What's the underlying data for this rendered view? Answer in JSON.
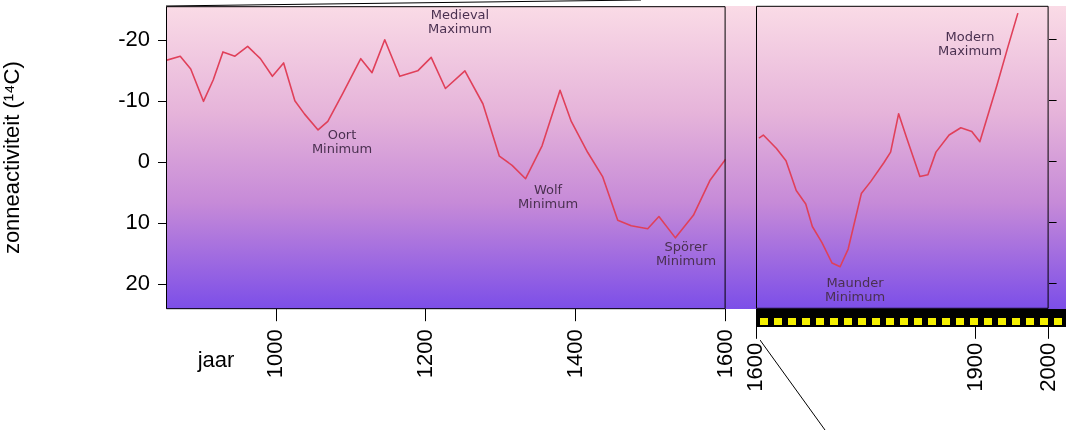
{
  "chart_data": [
    {
      "type": "line",
      "ylabel": "zonneactiviteit (¹⁴C)",
      "xlabel": "jaar",
      "xlim": [
        853,
        1600
      ],
      "xticks": [
        1000,
        1200,
        1400,
        1600
      ],
      "ylim": [
        24.1,
        -25.6
      ],
      "yticks": [
        -20,
        -10,
        0,
        10,
        20
      ],
      "grid": false,
      "legend": false,
      "marker": "none",
      "line_style": "solid",
      "x": [
        853,
        872,
        886,
        903,
        916,
        929,
        945,
        962,
        979,
        995,
        1010,
        1025,
        1038,
        1056,
        1069,
        1089,
        1113,
        1128,
        1145,
        1165,
        1189,
        1207,
        1226,
        1252,
        1276,
        1298,
        1315,
        1333,
        1355,
        1379,
        1394,
        1416,
        1436,
        1456,
        1474,
        1496,
        1511,
        1533,
        1557,
        1579,
        1600
      ],
      "series": [
        {
          "color": "#e0405a",
          "values": [
            -16.7,
            -17.4,
            -15.3,
            -10.0,
            -13.5,
            -18.1,
            -17.4,
            -19.0,
            -17.0,
            -14.1,
            -16.3,
            -10.1,
            -7.9,
            -5.3,
            -6.7,
            -11.3,
            -17.0,
            -14.7,
            -20.1,
            -14.1,
            -15.0,
            -17.2,
            -12.1,
            -15.0,
            -9.6,
            -1.0,
            0.5,
            2.7,
            -2.7,
            -11.8,
            -6.7,
            -1.6,
            2.4,
            9.5,
            10.4,
            10.9,
            8.9,
            12.4,
            8.7,
            3.0,
            -0.5
          ]
        }
      ],
      "annotations": [
        "Oort Minimum",
        "Medieval Maximum",
        "Wolf Minimum",
        "Spörer Minimum"
      ]
    },
    {
      "type": "line",
      "xlim": [
        1600,
        2000
      ],
      "xticks": [
        1600,
        1900,
        2000
      ],
      "ylim": [
        24.1,
        -25.6
      ],
      "yticks": [
        -20,
        -10,
        0,
        10,
        20
      ],
      "tick_labels": "x",
      "grid": false,
      "legend": false,
      "marker": "none",
      "line_style": "solid",
      "x": [
        1604,
        1610,
        1628,
        1641,
        1655,
        1668,
        1677,
        1690,
        1704,
        1715,
        1726,
        1744,
        1757,
        1775,
        1784,
        1795,
        1806,
        1824,
        1835,
        1846,
        1864,
        1880,
        1895,
        1906,
        1929,
        1944,
        1958
      ],
      "series": [
        {
          "color": "#e0405a",
          "values": [
            -3.9,
            -4.4,
            -2.2,
            -0.2,
            4.7,
            6.9,
            10.6,
            13.2,
            16.6,
            17.2,
            14.3,
            5.2,
            3.2,
            0.1,
            -1.6,
            -7.9,
            -3.9,
            2.4,
            2.1,
            -1.6,
            -4.4,
            -5.6,
            -5.0,
            -3.3,
            -12.4,
            -18.7,
            -24.4
          ]
        }
      ],
      "annotations": [
        "Maunder Minimum",
        "Modern Maximum"
      ]
    }
  ]
}
